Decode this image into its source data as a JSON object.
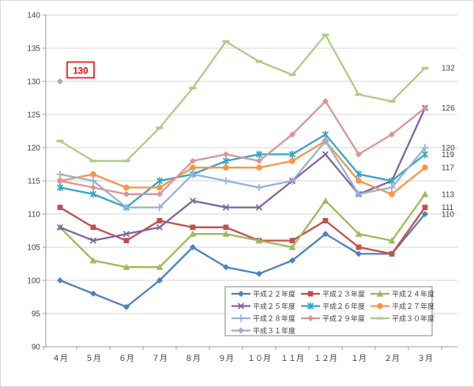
{
  "chart_data": {
    "type": "line",
    "title": "",
    "xlabel": "",
    "ylabel": "",
    "ylim": [
      90,
      140
    ],
    "y_ticks": [
      90,
      95,
      100,
      105,
      110,
      115,
      120,
      125,
      130,
      135,
      140
    ],
    "grid": true,
    "legend_position": "inside-bottom-right",
    "categories": [
      "４月",
      "５月",
      "６月",
      "７月",
      "８月",
      "９月",
      "１０月",
      "１１月",
      "１２月",
      "１月",
      "２月",
      "３月"
    ],
    "series": [
      {
        "name": "平成２２年度",
        "color": "#4F81BD",
        "marker": "diamond",
        "values": [
          100,
          98,
          96,
          100,
          105,
          102,
          101,
          103,
          107,
          104,
          104,
          110
        ]
      },
      {
        "name": "平成２３年度",
        "color": "#C0504D",
        "marker": "square",
        "values": [
          111,
          108,
          106,
          109,
          108,
          108,
          106,
          106,
          109,
          105,
          104,
          111
        ]
      },
      {
        "name": "平成２４年度",
        "color": "#9BBB59",
        "marker": "triangle",
        "values": [
          108,
          103,
          102,
          102,
          107,
          107,
          106,
          105,
          112,
          107,
          106,
          113
        ]
      },
      {
        "name": "平成２５年度",
        "color": "#8064A2",
        "marker": "x",
        "values": [
          108,
          106,
          107,
          108,
          112,
          111,
          111,
          115,
          119,
          113,
          115,
          126
        ]
      },
      {
        "name": "平成２６年度",
        "color": "#36A5C4",
        "marker": "asterisk",
        "values": [
          114,
          113,
          111,
          115,
          116,
          118,
          119,
          119,
          122,
          116,
          115,
          119
        ]
      },
      {
        "name": "平成２７年度",
        "color": "#F79646",
        "marker": "circle",
        "values": [
          115,
          116,
          114,
          114,
          117,
          117,
          117,
          118,
          121,
          115,
          113,
          117
        ]
      },
      {
        "name": "平成２８年度",
        "color": "#95B3D7",
        "marker": "plus",
        "values": [
          116,
          115,
          111,
          111,
          116,
          115,
          114,
          115,
          121,
          113,
          114,
          120
        ]
      },
      {
        "name": "平成２９年度",
        "color": "#D99694",
        "marker": "diamond",
        "values": [
          115,
          114,
          113,
          113,
          118,
          119,
          118,
          122,
          127,
          119,
          122,
          126
        ]
      },
      {
        "name": "平成３０年度",
        "color": "#AFCB85",
        "marker": "dash",
        "values": [
          121,
          118,
          118,
          123,
          129,
          136,
          133,
          131,
          137,
          128,
          127,
          132
        ]
      },
      {
        "name": "平成３１年度",
        "color": "#B3A2C7",
        "marker": "diamond",
        "values": [
          130,
          null,
          null,
          null,
          null,
          null,
          null,
          null,
          null,
          null,
          null,
          null
        ]
      }
    ],
    "end_labels": [
      {
        "text": "132",
        "value": 132
      },
      {
        "text": "126",
        "value": 126
      },
      {
        "text": "120",
        "value": 120
      },
      {
        "text": "119",
        "value": 119
      },
      {
        "text": "117",
        "value": 117
      },
      {
        "text": "113",
        "value": 113
      },
      {
        "text": "111",
        "value": 111
      },
      {
        "text": "110",
        "value": 110
      }
    ],
    "annotation": {
      "text": "130",
      "color": "#FF0000",
      "series": "平成３１年度",
      "x_index": 0,
      "value": 130
    }
  },
  "palette": {
    "grid": "#D5D5D5",
    "axis": "#9B9B9B",
    "legend_border": "#848484",
    "text": "#3F3F3F"
  }
}
